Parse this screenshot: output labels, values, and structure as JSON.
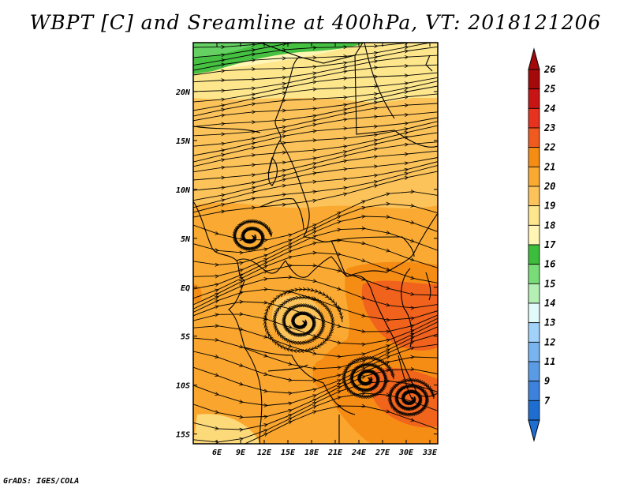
{
  "title": "WBPT [C] and Sreamline at 400hPa, VT: 2018121206",
  "credit": "GrADS: IGES/COLA",
  "map": {
    "lon_range": [
      3,
      34
    ],
    "lat_range": [
      -16,
      25
    ],
    "lon_ticks": [
      {
        "value": 6,
        "label": "6E"
      },
      {
        "value": 9,
        "label": "9E"
      },
      {
        "value": 12,
        "label": "12E"
      },
      {
        "value": 15,
        "label": "15E"
      },
      {
        "value": 18,
        "label": "18E"
      },
      {
        "value": 21,
        "label": "21E"
      },
      {
        "value": 24,
        "label": "24E"
      },
      {
        "value": 27,
        "label": "27E"
      },
      {
        "value": 30,
        "label": "30E"
      },
      {
        "value": 33,
        "label": "33E"
      }
    ],
    "lat_ticks": [
      {
        "value": 20,
        "label": "20N"
      },
      {
        "value": 15,
        "label": "15N"
      },
      {
        "value": 10,
        "label": "10N"
      },
      {
        "value": 5,
        "label": "5N"
      },
      {
        "value": 0,
        "label": "EQ"
      },
      {
        "value": -5,
        "label": "5S"
      },
      {
        "value": -10,
        "label": "10S"
      },
      {
        "value": -15,
        "label": "15S"
      }
    ]
  },
  "colorbar": {
    "levels": [
      {
        "label": "26",
        "color": "#a50a0a"
      },
      {
        "label": "25",
        "color": "#c81414"
      },
      {
        "label": "24",
        "color": "#e6321e"
      },
      {
        "label": "23",
        "color": "#f05a1e"
      },
      {
        "label": "22",
        "color": "#f58c14"
      },
      {
        "label": "21",
        "color": "#faaa32"
      },
      {
        "label": "20",
        "color": "#fcc35a"
      },
      {
        "label": "19",
        "color": "#fde68c"
      },
      {
        "label": "18",
        "color": "#fff5b4"
      },
      {
        "label": "17",
        "color": "#3cbe3c"
      },
      {
        "label": "16",
        "color": "#78dc78"
      },
      {
        "label": "15",
        "color": "#b4f0b4"
      },
      {
        "label": "14",
        "color": "#e1fafa"
      },
      {
        "label": "13",
        "color": "#a0d2fa"
      },
      {
        "label": "12",
        "color": "#78b4f0"
      },
      {
        "label": "11",
        "color": "#5a9be6"
      },
      {
        "label": "9",
        "color": "#3c82dc"
      },
      {
        "label": "7",
        "color": "#1e6ed2"
      }
    ]
  }
}
